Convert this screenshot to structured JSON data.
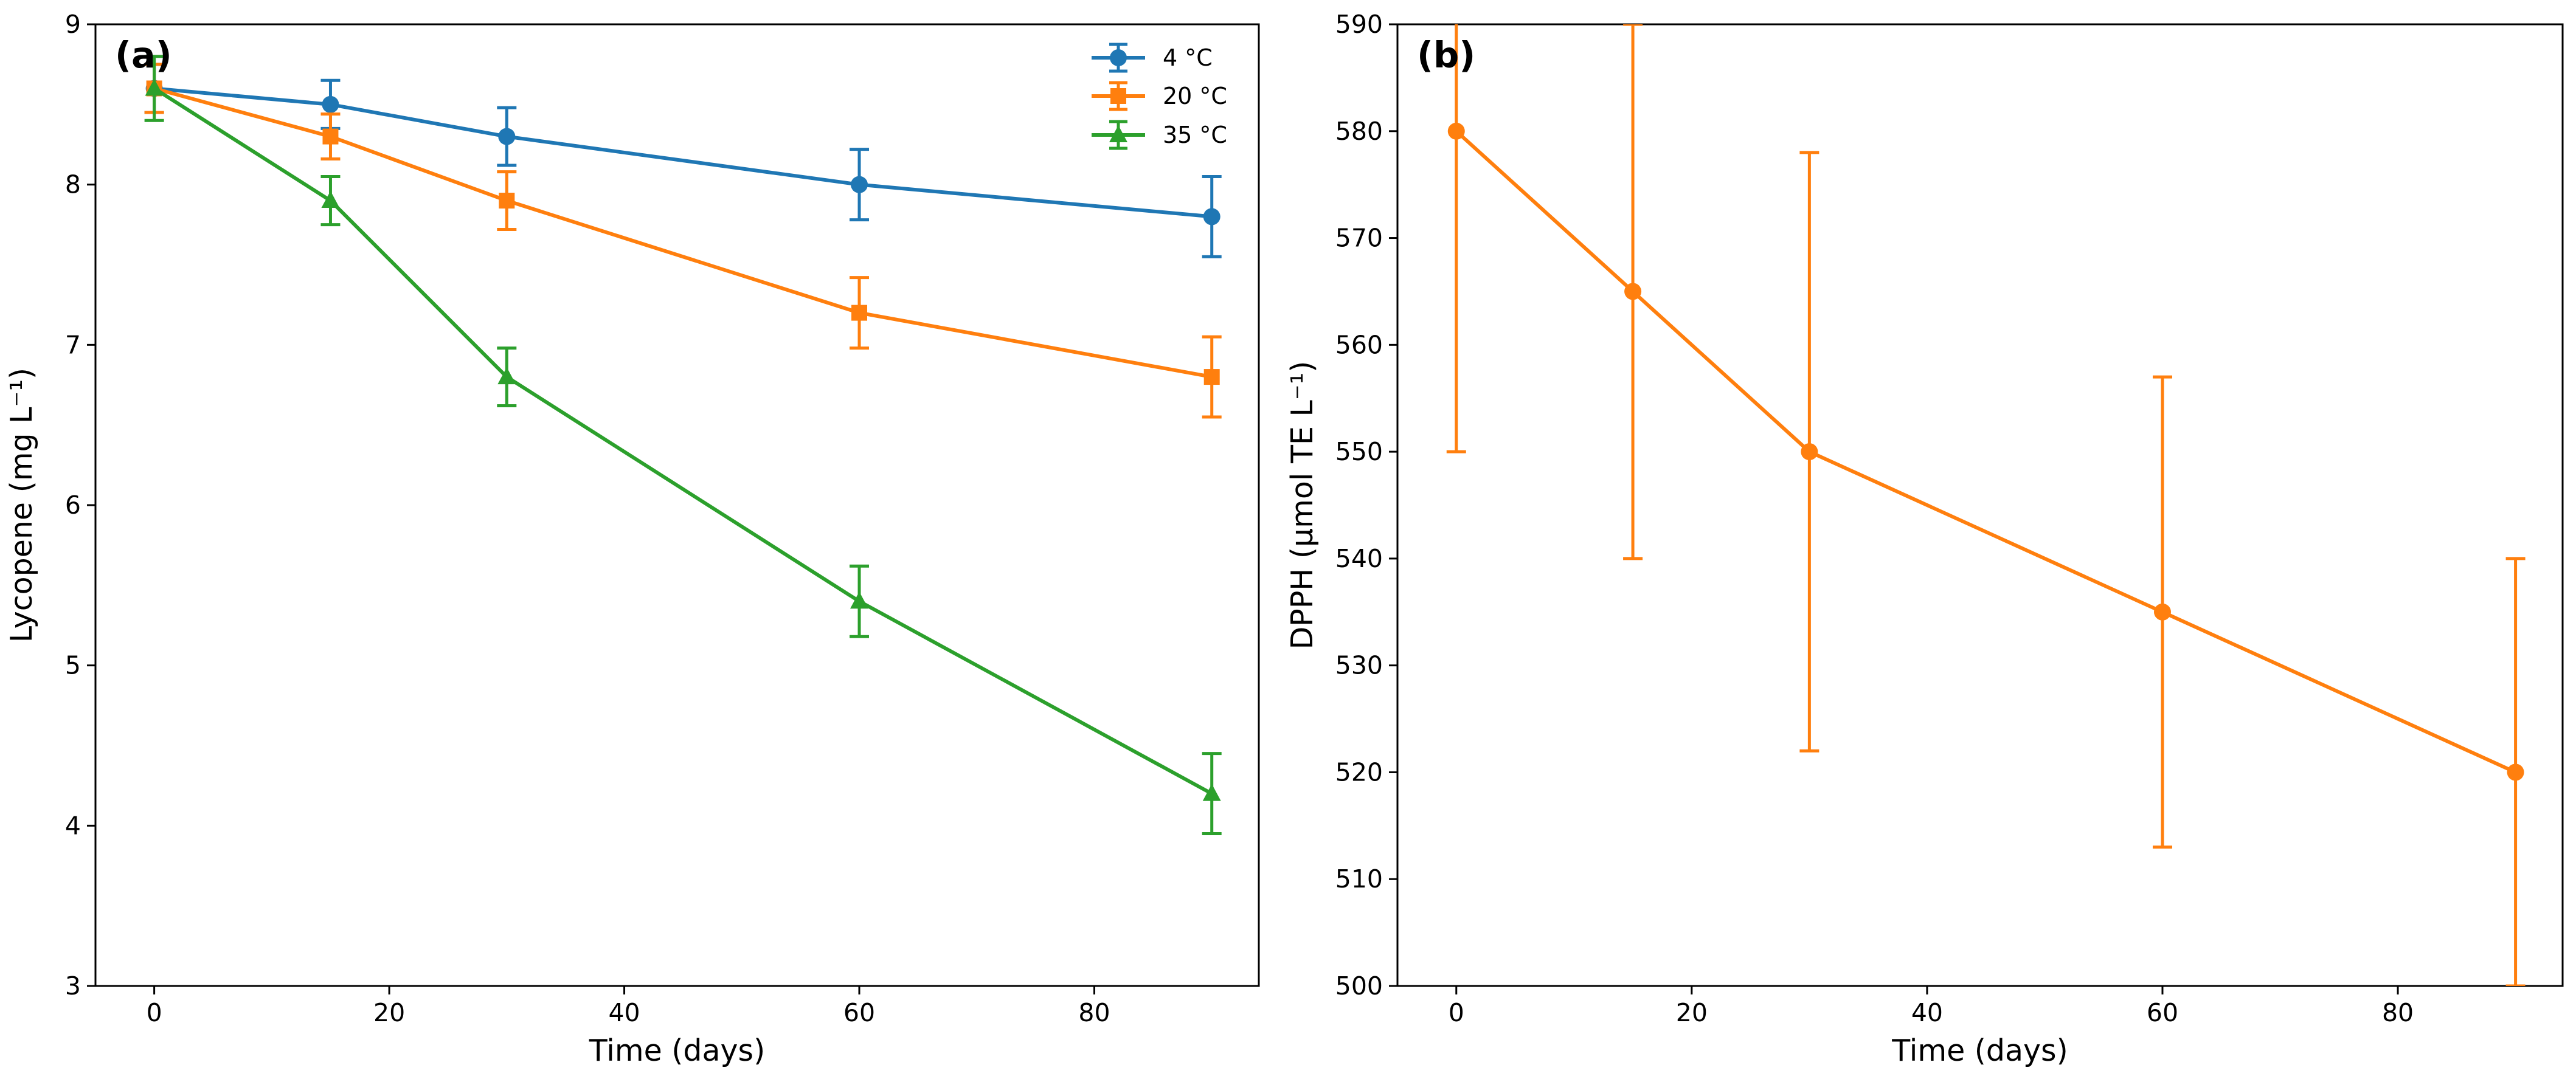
{
  "chart_data": [
    {
      "type": "line",
      "panel_label": "(a)",
      "xlabel": "Time (days)",
      "ylabel": "Lycopene (mg L⁻¹)",
      "xlim": [
        -5,
        94
      ],
      "ylim": [
        3,
        9
      ],
      "x_ticks": [
        0,
        20,
        40,
        60,
        80
      ],
      "y_ticks": [
        3,
        4,
        5,
        6,
        7,
        8,
        9
      ],
      "grid": false,
      "legend_position": "top-right",
      "x": [
        0,
        15,
        30,
        60,
        90
      ],
      "series": [
        {
          "name": "4 °C",
          "color": "#1f77b4",
          "marker": "circle",
          "values": [
            8.6,
            8.5,
            8.3,
            8.0,
            7.8
          ],
          "errors": [
            0.15,
            0.15,
            0.18,
            0.22,
            0.25
          ]
        },
        {
          "name": "20 °C",
          "color": "#ff7f0e",
          "marker": "square",
          "values": [
            8.6,
            8.3,
            7.9,
            7.2,
            6.8
          ],
          "errors": [
            0.15,
            0.14,
            0.18,
            0.22,
            0.25
          ]
        },
        {
          "name": "35 °C",
          "color": "#2ca02c",
          "marker": "triangle",
          "values": [
            8.6,
            7.9,
            6.8,
            5.4,
            4.2
          ],
          "errors": [
            0.2,
            0.15,
            0.18,
            0.22,
            0.25
          ]
        }
      ]
    },
    {
      "type": "line",
      "panel_label": "(b)",
      "xlabel": "Time (days)",
      "ylabel": "DPPH (μmol TE L⁻¹)",
      "xlim": [
        -5,
        94
      ],
      "ylim": [
        500,
        590
      ],
      "x_ticks": [
        0,
        20,
        40,
        60,
        80
      ],
      "y_ticks": [
        500,
        510,
        520,
        530,
        540,
        550,
        560,
        570,
        580,
        590
      ],
      "grid": false,
      "legend_position": "none",
      "x": [
        0,
        15,
        30,
        60,
        90
      ],
      "series": [
        {
          "name": "DPPH",
          "color": "#ff7f0e",
          "marker": "circle",
          "values": [
            580,
            565,
            550,
            535,
            520
          ],
          "errors": [
            30,
            25,
            28,
            22,
            20
          ]
        }
      ]
    }
  ]
}
